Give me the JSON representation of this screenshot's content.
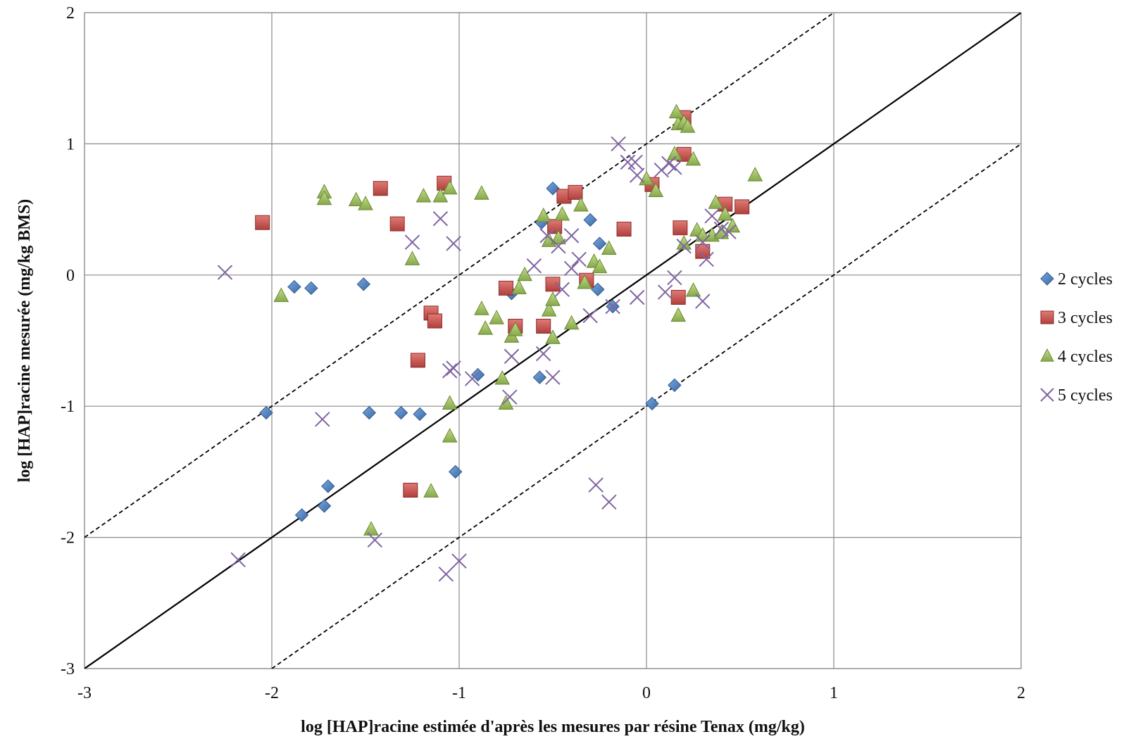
{
  "chart_data": {
    "type": "scatter",
    "xlabel": "log [HAP]racine estimée d'après les mesures par résine Tenax (mg/kg)",
    "ylabel": "log [HAP]racine mesurée (mg/kg BMS)",
    "xlim": [
      -3,
      2
    ],
    "ylim": [
      -3,
      2
    ],
    "xticks": [
      "-3",
      "-2",
      "-1",
      "0",
      "1",
      "2"
    ],
    "yticks": [
      "-3",
      "-2",
      "-1",
      "0",
      "1",
      "2"
    ],
    "grid": true,
    "legend_position": "right",
    "reference_lines": [
      {
        "style": "solid",
        "color": "#000000",
        "points": [
          [
            -3,
            -3
          ],
          [
            2,
            2
          ]
        ]
      },
      {
        "style": "dashed",
        "color": "#000000",
        "points": [
          [
            -3,
            -2
          ],
          [
            1,
            2
          ]
        ]
      },
      {
        "style": "dashed",
        "color": "#000000",
        "points": [
          [
            -2,
            -3
          ],
          [
            2,
            1
          ]
        ]
      }
    ],
    "series": [
      {
        "name": "2 cycles",
        "marker": "diamond",
        "color": "#4a7ebb",
        "points": [
          [
            -2.03,
            -1.05
          ],
          [
            -1.88,
            -0.09
          ],
          [
            -1.79,
            -0.1
          ],
          [
            -1.51,
            -0.07
          ],
          [
            -1.84,
            -1.83
          ],
          [
            -1.72,
            -1.76
          ],
          [
            -1.7,
            -1.61
          ],
          [
            -1.48,
            -1.05
          ],
          [
            -1.31,
            -1.05
          ],
          [
            -1.21,
            -1.06
          ],
          [
            -1.02,
            -1.5
          ],
          [
            -0.9,
            -0.76
          ],
          [
            -0.72,
            -0.14
          ],
          [
            -0.57,
            -0.78
          ],
          [
            -0.56,
            0.4
          ],
          [
            -0.5,
            0.66
          ],
          [
            -0.3,
            0.42
          ],
          [
            -0.25,
            0.24
          ],
          [
            -0.26,
            -0.11
          ],
          [
            -0.18,
            -0.24
          ],
          [
            0.03,
            -0.98
          ],
          [
            0.15,
            -0.84
          ]
        ]
      },
      {
        "name": "3 cycles",
        "marker": "square",
        "color": "#c0504d",
        "points": [
          [
            -2.05,
            0.4
          ],
          [
            -1.42,
            0.66
          ],
          [
            -1.33,
            0.39
          ],
          [
            -1.08,
            0.7
          ],
          [
            -1.15,
            -0.29
          ],
          [
            -1.13,
            -0.35
          ],
          [
            -1.22,
            -0.65
          ],
          [
            -1.26,
            -1.64
          ],
          [
            -0.75,
            -0.1
          ],
          [
            -0.7,
            -0.39
          ],
          [
            -0.55,
            -0.39
          ],
          [
            -0.5,
            -0.07
          ],
          [
            -0.49,
            0.37
          ],
          [
            -0.44,
            0.6
          ],
          [
            -0.38,
            0.63
          ],
          [
            -0.32,
            -0.04
          ],
          [
            -0.12,
            0.35
          ],
          [
            0.03,
            0.69
          ],
          [
            0.17,
            -0.17
          ],
          [
            0.18,
            0.36
          ],
          [
            0.2,
            1.2
          ],
          [
            0.2,
            0.92
          ],
          [
            0.3,
            0.18
          ],
          [
            0.42,
            0.54
          ],
          [
            0.51,
            0.52
          ]
        ]
      },
      {
        "name": "4 cycles",
        "marker": "triangle",
        "color": "#9bbb59",
        "points": [
          [
            -1.95,
            -0.16
          ],
          [
            -1.72,
            0.63
          ],
          [
            -1.72,
            0.58
          ],
          [
            -1.55,
            0.57
          ],
          [
            -1.5,
            0.54
          ],
          [
            -1.25,
            0.12
          ],
          [
            -1.19,
            0.6
          ],
          [
            -1.1,
            0.6
          ],
          [
            -1.05,
            0.66
          ],
          [
            -0.88,
            0.62
          ],
          [
            -1.05,
            -0.98
          ],
          [
            -1.05,
            -1.23
          ],
          [
            -1.15,
            -1.65
          ],
          [
            -1.47,
            -1.94
          ],
          [
            -0.88,
            -0.26
          ],
          [
            -0.86,
            -0.41
          ],
          [
            -0.8,
            -0.33
          ],
          [
            -0.77,
            -0.79
          ],
          [
            -0.75,
            -0.98
          ],
          [
            -0.72,
            -0.47
          ],
          [
            -0.7,
            -0.42
          ],
          [
            -0.68,
            -0.1
          ],
          [
            -0.65,
            0.0
          ],
          [
            -0.55,
            0.45
          ],
          [
            -0.52,
            -0.27
          ],
          [
            -0.52,
            0.26
          ],
          [
            -0.5,
            -0.19
          ],
          [
            -0.5,
            -0.48
          ],
          [
            -0.47,
            0.28
          ],
          [
            -0.45,
            0.46
          ],
          [
            -0.4,
            -0.37
          ],
          [
            -0.35,
            0.53
          ],
          [
            -0.33,
            -0.06
          ],
          [
            -0.28,
            0.1
          ],
          [
            -0.25,
            0.06
          ],
          [
            -0.2,
            0.2
          ],
          [
            0.0,
            0.73
          ],
          [
            0.05,
            0.64
          ],
          [
            0.15,
            0.92
          ],
          [
            0.16,
            1.24
          ],
          [
            0.17,
            1.15
          ],
          [
            0.2,
            1.16
          ],
          [
            0.22,
            1.13
          ],
          [
            0.17,
            -0.31
          ],
          [
            0.2,
            0.24
          ],
          [
            0.25,
            0.88
          ],
          [
            0.25,
            -0.12
          ],
          [
            0.27,
            0.34
          ],
          [
            0.3,
            0.3
          ],
          [
            0.35,
            0.3
          ],
          [
            0.37,
            0.55
          ],
          [
            0.4,
            0.32
          ],
          [
            0.42,
            0.46
          ],
          [
            0.46,
            0.37
          ],
          [
            0.58,
            0.76
          ]
        ]
      },
      {
        "name": "5 cycles",
        "marker": "x",
        "color": "#8064a2",
        "points": [
          [
            -2.25,
            0.02
          ],
          [
            -2.18,
            -2.17
          ],
          [
            -1.73,
            -1.1
          ],
          [
            -1.45,
            -2.02
          ],
          [
            -1.25,
            0.25
          ],
          [
            -1.1,
            0.43
          ],
          [
            -1.03,
            0.24
          ],
          [
            -1.05,
            -0.73
          ],
          [
            -1.03,
            -0.71
          ],
          [
            -0.93,
            -0.79
          ],
          [
            -1.07,
            -2.28
          ],
          [
            -1.0,
            -2.18
          ],
          [
            -0.73,
            -0.93
          ],
          [
            -0.72,
            -0.62
          ],
          [
            -0.6,
            0.07
          ],
          [
            -0.55,
            -0.6
          ],
          [
            -0.53,
            0.3
          ],
          [
            -0.5,
            -0.78
          ],
          [
            -0.47,
            0.22
          ],
          [
            -0.45,
            -0.11
          ],
          [
            -0.4,
            0.3
          ],
          [
            -0.4,
            0.05
          ],
          [
            -0.36,
            0.12
          ],
          [
            -0.3,
            -0.31
          ],
          [
            -0.27,
            -1.6
          ],
          [
            -0.2,
            -1.73
          ],
          [
            -0.18,
            -0.24
          ],
          [
            -0.15,
            1.0
          ],
          [
            -0.1,
            0.86
          ],
          [
            -0.06,
            0.86
          ],
          [
            -0.05,
            0.76
          ],
          [
            -0.05,
            -0.17
          ],
          [
            0.08,
            0.8
          ],
          [
            0.1,
            -0.13
          ],
          [
            0.12,
            0.85
          ],
          [
            0.15,
            0.82
          ],
          [
            0.15,
            -0.02
          ],
          [
            0.2,
            0.22
          ],
          [
            0.3,
            0.25
          ],
          [
            0.3,
            -0.2
          ],
          [
            0.32,
            0.12
          ],
          [
            0.35,
            0.45
          ],
          [
            0.4,
            0.35
          ],
          [
            0.44,
            0.33
          ]
        ]
      }
    ]
  }
}
